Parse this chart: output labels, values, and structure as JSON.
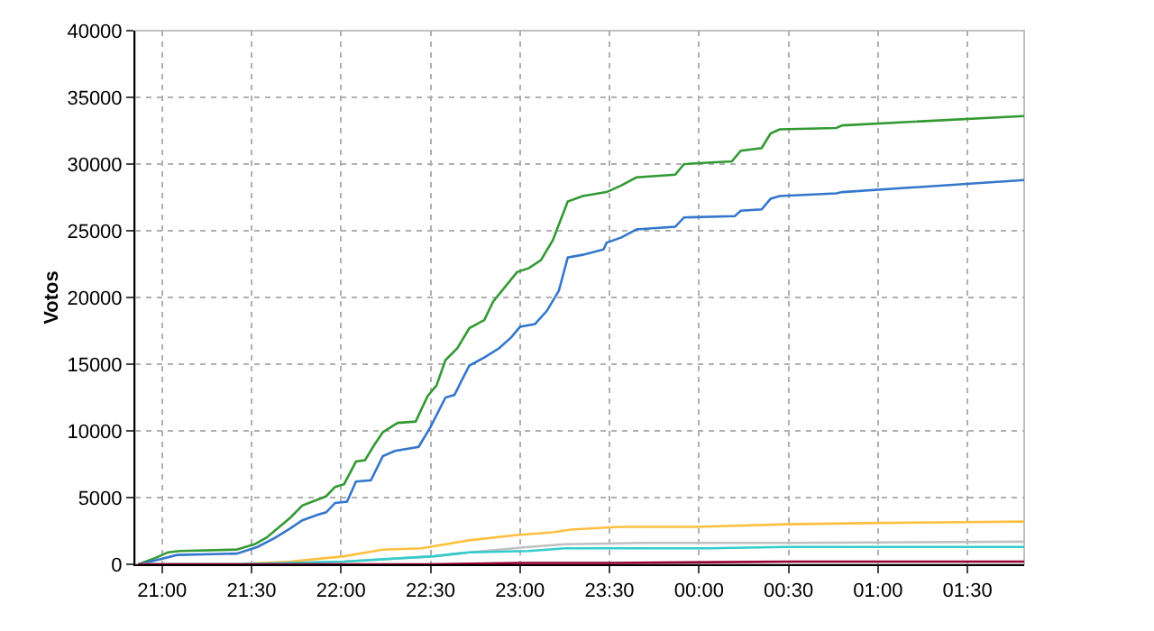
{
  "chart_data": {
    "type": "line",
    "ylabel": "Votos",
    "xlim": [
      "2000-01-01T20:51",
      "2000-01-02T01:49"
    ],
    "ylim": [
      0,
      40000
    ],
    "xticks": [
      {
        "value": "2000-01-01T21:00",
        "label": "21:00"
      },
      {
        "value": "2000-01-01T21:30",
        "label": "21:30"
      },
      {
        "value": "2000-01-01T22:00",
        "label": "22:00"
      },
      {
        "value": "2000-01-01T22:30",
        "label": "22:30"
      },
      {
        "value": "2000-01-01T23:00",
        "label": "23:00"
      },
      {
        "value": "2000-01-01T23:30",
        "label": "23:30"
      },
      {
        "value": "2000-01-02T00:00",
        "label": "00:00"
      },
      {
        "value": "2000-01-02T00:30",
        "label": "00:30"
      },
      {
        "value": "2000-01-02T01:00",
        "label": "01:00"
      },
      {
        "value": "2000-01-02T01:30",
        "label": "01:30"
      }
    ],
    "yticks": [
      0,
      5000,
      10000,
      15000,
      20000,
      25000,
      30000,
      35000,
      40000
    ],
    "grid": true,
    "marker": "none",
    "line_style": "solid",
    "series": [
      {
        "color": "#339933",
        "x": [
          "2000-01-01T20:52",
          "2000-01-01T20:58",
          "2000-01-01T21:02",
          "2000-01-01T21:06",
          "2000-01-01T21:25",
          "2000-01-01T21:31",
          "2000-01-01T21:35",
          "2000-01-01T21:43",
          "2000-01-01T21:47",
          "2000-01-01T21:55",
          "2000-01-01T21:58",
          "2000-01-01T22:01",
          "2000-01-01T22:05",
          "2000-01-01T22:08",
          "2000-01-01T22:11",
          "2000-01-01T22:14",
          "2000-01-01T22:19",
          "2000-01-01T22:25",
          "2000-01-01T22:29",
          "2000-01-01T22:32",
          "2000-01-01T22:35",
          "2000-01-01T22:39",
          "2000-01-01T22:43",
          "2000-01-01T22:48",
          "2000-01-01T22:51",
          "2000-01-01T22:59",
          "2000-01-01T23:03",
          "2000-01-01T23:07",
          "2000-01-01T23:11",
          "2000-01-01T23:16",
          "2000-01-01T23:21",
          "2000-01-01T23:29",
          "2000-01-01T23:34",
          "2000-01-01T23:39",
          "2000-01-01T23:52",
          "2000-01-01T23:55",
          "2000-01-02T00:11",
          "2000-01-02T00:14",
          "2000-01-02T00:21",
          "2000-01-02T00:24",
          "2000-01-02T00:27",
          "2000-01-02T00:46",
          "2000-01-02T00:48",
          "2000-01-02T01:49"
        ],
        "values": [
          0,
          500,
          900,
          1000,
          1100,
          1500,
          2000,
          3500,
          4400,
          5100,
          5800,
          6000,
          7700,
          7800,
          8900,
          9900,
          10600,
          10700,
          12600,
          13400,
          15300,
          16200,
          17700,
          18300,
          19700,
          21900,
          22200,
          22800,
          24300,
          27200,
          27600,
          27900,
          28400,
          29000,
          29200,
          30000,
          30200,
          31000,
          31200,
          32300,
          32600,
          32700,
          32900,
          33600
        ]
      },
      {
        "color": "#3377cc",
        "x": [
          "2000-01-01T20:52",
          "2000-01-01T20:58",
          "2000-01-01T21:05",
          "2000-01-01T21:25",
          "2000-01-01T21:32",
          "2000-01-01T21:38",
          "2000-01-01T21:43",
          "2000-01-01T21:47",
          "2000-01-01T21:52",
          "2000-01-01T21:55",
          "2000-01-01T21:58",
          "2000-01-01T22:02",
          "2000-01-01T22:05",
          "2000-01-01T22:10",
          "2000-01-01T22:14",
          "2000-01-01T22:18",
          "2000-01-01T22:26",
          "2000-01-01T22:30",
          "2000-01-01T22:35",
          "2000-01-01T22:38",
          "2000-01-01T22:43",
          "2000-01-01T22:48",
          "2000-01-01T22:53",
          "2000-01-01T22:57",
          "2000-01-01T23:00",
          "2000-01-01T23:05",
          "2000-01-01T23:09",
          "2000-01-01T23:13",
          "2000-01-01T23:16",
          "2000-01-01T23:21",
          "2000-01-01T23:28",
          "2000-01-01T23:29",
          "2000-01-01T23:34",
          "2000-01-01T23:39",
          "2000-01-01T23:52",
          "2000-01-01T23:55",
          "2000-01-02T00:12",
          "2000-01-02T00:14",
          "2000-01-02T00:21",
          "2000-01-02T00:24",
          "2000-01-02T00:27",
          "2000-01-02T00:46",
          "2000-01-02T00:48",
          "2000-01-02T01:49"
        ],
        "values": [
          0,
          300,
          700,
          800,
          1300,
          2000,
          2700,
          3300,
          3700,
          3900,
          4600,
          4700,
          6200,
          6300,
          8100,
          8500,
          8800,
          10300,
          12500,
          12700,
          14900,
          15500,
          16200,
          17000,
          17800,
          18000,
          19000,
          20500,
          23000,
          23200,
          23600,
          24100,
          24500,
          25100,
          25300,
          26000,
          26100,
          26500,
          26600,
          27400,
          27600,
          27800,
          27900,
          28800
        ]
      },
      {
        "color": "#ffc040",
        "x": [
          "2000-01-01T20:52",
          "2000-01-01T21:25",
          "2000-01-01T21:43",
          "2000-01-01T22:01",
          "2000-01-01T22:14",
          "2000-01-01T22:27",
          "2000-01-01T22:43",
          "2000-01-01T22:59",
          "2000-01-01T23:11",
          "2000-01-01T23:17",
          "2000-01-01T23:33",
          "2000-01-01T23:59",
          "2000-01-02T00:29",
          "2000-01-02T01:00",
          "2000-01-02T01:49"
        ],
        "values": [
          0,
          0,
          200,
          600,
          1100,
          1200,
          1800,
          2200,
          2400,
          2600,
          2800,
          2800,
          3000,
          3100,
          3200
        ]
      },
      {
        "color": "#c0c0c0",
        "x": [
          "2000-01-01T20:52",
          "2000-01-01T21:25",
          "2000-01-01T22:01",
          "2000-01-01T22:31",
          "2000-01-01T22:43",
          "2000-01-01T23:03",
          "2000-01-01T23:15",
          "2000-01-01T23:43",
          "2000-01-02T00:29",
          "2000-01-02T01:49"
        ],
        "values": [
          0,
          0,
          200,
          600,
          900,
          1300,
          1500,
          1600,
          1600,
          1700
        ]
      },
      {
        "color": "#33cccc",
        "x": [
          "2000-01-01T20:52",
          "2000-01-01T21:25",
          "2000-01-01T22:01",
          "2000-01-01T22:31",
          "2000-01-01T22:43",
          "2000-01-01T23:03",
          "2000-01-01T23:15",
          "2000-01-02T00:03",
          "2000-01-02T00:29",
          "2000-01-02T01:49"
        ],
        "values": [
          0,
          0,
          200,
          600,
          900,
          1000,
          1200,
          1200,
          1300,
          1300
        ]
      },
      {
        "color": "#990033",
        "x": [
          "2000-01-01T20:52",
          "2000-01-01T22:30",
          "2000-01-01T23:00",
          "2000-01-01T23:30",
          "2000-01-02T00:30",
          "2000-01-02T01:49"
        ],
        "values": [
          0,
          0,
          100,
          100,
          200,
          200
        ]
      }
    ]
  }
}
